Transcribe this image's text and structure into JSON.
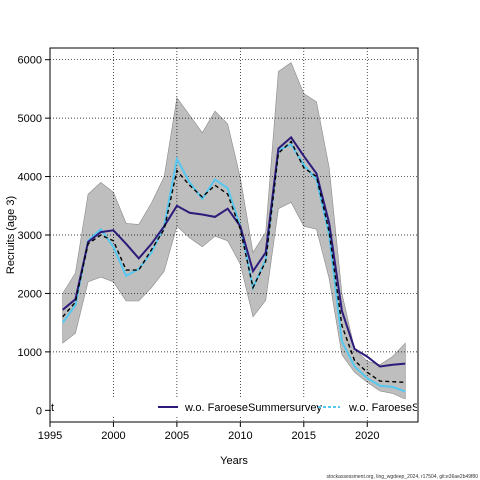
{
  "chart_data": {
    "type": "line",
    "xlabel": "Years",
    "ylabel": "Recruits (age 3)",
    "xlim": [
      1995,
      2024
    ],
    "ylim": [
      -200,
      6200
    ],
    "x_ticks": [
      1995,
      2000,
      2005,
      2010,
      2015,
      2020
    ],
    "y_ticks": [
      0,
      1000,
      2000,
      3000,
      4000,
      5000,
      6000
    ],
    "grid": true,
    "x": [
      1996,
      1997,
      1998,
      1999,
      2000,
      2001,
      2002,
      2003,
      2004,
      2005,
      2006,
      2007,
      2008,
      2009,
      2010,
      2011,
      2012,
      2013,
      2014,
      2015,
      2016,
      2017,
      2018,
      2019,
      2020,
      2021,
      2022,
      2023
    ],
    "band": {
      "lower": [
        1150,
        1320,
        2200,
        2280,
        2200,
        1870,
        1870,
        2100,
        2380,
        3150,
        2950,
        2800,
        2980,
        2900,
        2500,
        1600,
        1880,
        3450,
        3560,
        3150,
        3100,
        2250,
        950,
        650,
        480,
        330,
        290,
        190
      ],
      "upper": [
        2000,
        2350,
        3700,
        3900,
        3730,
        3200,
        3180,
        3550,
        4000,
        5350,
        5050,
        4750,
        5120,
        4900,
        3980,
        2700,
        3050,
        5800,
        5950,
        5420,
        5280,
        4150,
        2000,
        1050,
        840,
        780,
        920,
        1150
      ]
    },
    "series": [
      {
        "name": "",
        "color": "#000000",
        "style": "dashed",
        "values": [
          1600,
          1850,
          2850,
          3000,
          2900,
          2400,
          2400,
          2750,
          3100,
          4100,
          3850,
          3650,
          3850,
          3700,
          3100,
          2100,
          2550,
          4400,
          4600,
          4150,
          4000,
          3050,
          1450,
          850,
          650,
          500,
          490,
          480
        ]
      },
      {
        "name": "w.o. FaroeseSummersurvey",
        "color": "#2e1a7a",
        "style": "solid",
        "values": [
          1720,
          1900,
          2880,
          3050,
          3080,
          2850,
          2600,
          2850,
          3150,
          3500,
          3380,
          3350,
          3310,
          3450,
          3150,
          2380,
          2700,
          4480,
          4670,
          4350,
          4050,
          3200,
          1700,
          1050,
          920,
          750,
          780,
          800
        ]
      },
      {
        "name": "w.o. FaroeseSp",
        "color": "#55c8f0",
        "style": "solid",
        "values": [
          1500,
          1800,
          2900,
          3100,
          2800,
          2300,
          2420,
          2700,
          3150,
          4300,
          3900,
          3620,
          3950,
          3800,
          3150,
          2100,
          2580,
          4450,
          4550,
          4200,
          3950,
          3000,
          1180,
          750,
          550,
          420,
          400,
          320
        ]
      }
    ],
    "band_color": "#bebebe",
    "legend_placement": "bottom",
    "legend_cut_label": "t"
  },
  "credit": "stockassessment.org, ling_wgdeep_2024, r17504, git:e36ae2b49f80"
}
